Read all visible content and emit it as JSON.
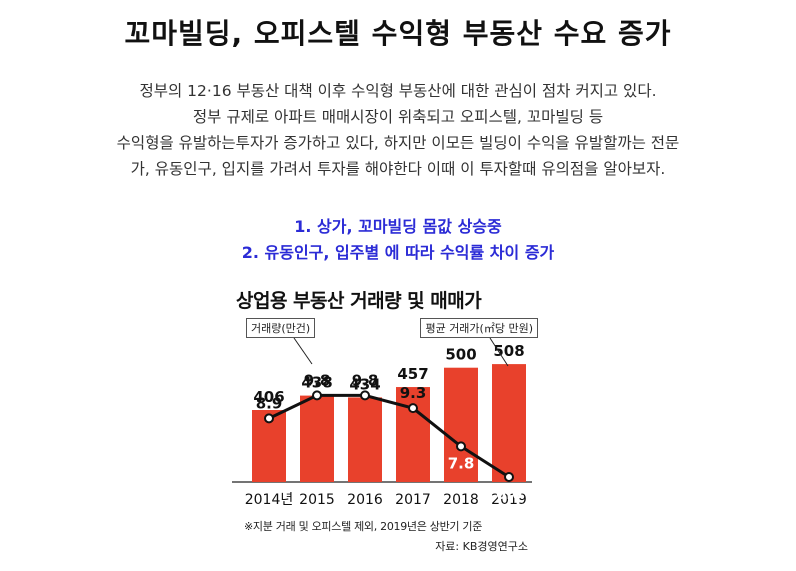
{
  "header": {
    "title": "꼬마빌딩, 오피스텔 수익형 부동산 수요 증가"
  },
  "intro": {
    "lines": [
      "정부의 12·16 부동산 대책 이후 수익형 부동산에 대한 관심이 점차 커지고 있다.",
      "정부 규제로 아파트 매매시장이 위축되고 오피스텔, 꼬마빌딩 등",
      "수익형을 유발하는투자가 증가하고 있다, 하지만 이모든 빌딩이 수익을 유발할까는 전문",
      "가, 유동인구, 입지를 가려서 투자를 해야한다 이때 이 투자할때 유의점을 알아보자."
    ]
  },
  "points": [
    "1. 상가, 꼬마빌딩 몸값 상승중",
    "2. 유동인구, 입주별 에 따라 수익률 차이 증가"
  ],
  "colors": {
    "accent_blue": "#2b2bd6",
    "bar_red": "#e8412c",
    "line_black": "#111111"
  },
  "chart_data": {
    "type": "bar",
    "title": "상업용 부동산 거래량 및 매매가",
    "categories": [
      "2014년",
      "2015",
      "2016",
      "2017",
      "2018",
      "2019"
    ],
    "series": [
      {
        "name": "평균 거래가(㎡당 만원)",
        "type": "bar",
        "values": [
          406,
          438,
          434,
          457,
          500,
          508
        ]
      },
      {
        "name": "거래량(만건)",
        "type": "line",
        "values": [
          8.9,
          9.8,
          9.8,
          9.3,
          7.8,
          6.6
        ]
      }
    ],
    "note": "※지분 거래 및 오피스텔 제외, 2019년은 상반기 기준",
    "source": "자료: KB경영연구소"
  }
}
